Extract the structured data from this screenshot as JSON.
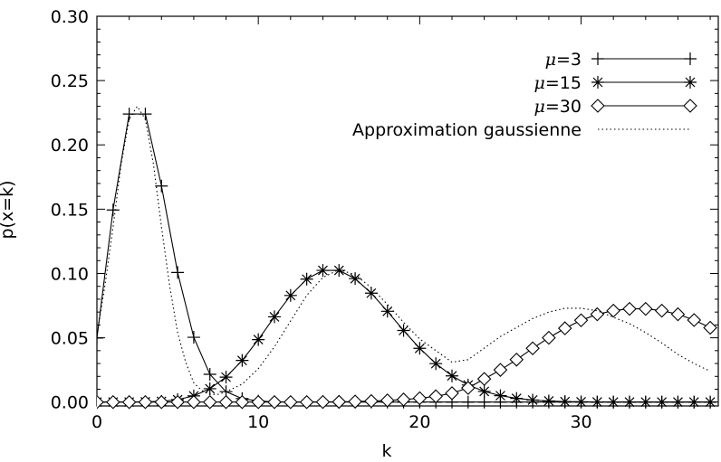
{
  "chart_data": {
    "type": "line",
    "xlabel": "k",
    "ylabel": "p(x=k)",
    "xlim": [
      0,
      38.5
    ],
    "ylim": [
      -0.003,
      0.3
    ],
    "x_ticks": [
      "0",
      "10",
      "20",
      "30"
    ],
    "y_ticks": [
      "0.00",
      "0.05",
      "0.10",
      "0.15",
      "0.20",
      "0.25",
      "0.30"
    ],
    "grid": false,
    "legend_position": "top-right",
    "series": [
      {
        "name": "μ=3",
        "legend_mu": "μ",
        "legend_rest": "=3",
        "marker": "plus",
        "x": [
          0,
          1,
          2,
          3,
          4,
          5,
          6,
          7,
          8,
          9,
          10,
          11,
          12,
          13,
          14,
          15,
          16,
          17,
          18,
          19,
          20,
          21,
          22,
          23,
          24,
          25,
          26,
          27,
          28,
          29,
          30,
          31,
          32,
          33,
          34,
          35,
          36,
          37,
          38
        ],
        "values": [
          0.0498,
          0.1494,
          0.224,
          0.224,
          0.168,
          0.1008,
          0.0504,
          0.0216,
          0.0081,
          0.0027,
          0.0008,
          0.0002,
          0.0001,
          0,
          0,
          0,
          0,
          0,
          0,
          0,
          0,
          0,
          0,
          0,
          0,
          0,
          0,
          0,
          0,
          0,
          0,
          0,
          0,
          0,
          0,
          0,
          0,
          0,
          0
        ]
      },
      {
        "name": "μ=15",
        "legend_mu": "μ",
        "legend_rest": "=15",
        "marker": "asterisk",
        "x": [
          0,
          1,
          2,
          3,
          4,
          5,
          6,
          7,
          8,
          9,
          10,
          11,
          12,
          13,
          14,
          15,
          16,
          17,
          18,
          19,
          20,
          21,
          22,
          23,
          24,
          25,
          26,
          27,
          28,
          29,
          30,
          31,
          32,
          33,
          34,
          35,
          36,
          37,
          38
        ],
        "values": [
          0,
          0,
          0,
          0.0002,
          0.0006,
          0.0019,
          0.0048,
          0.0104,
          0.0194,
          0.0324,
          0.0486,
          0.0663,
          0.0829,
          0.0956,
          0.1024,
          0.1024,
          0.096,
          0.0847,
          0.0706,
          0.0557,
          0.0418,
          0.0299,
          0.0204,
          0.0133,
          0.0083,
          0.005,
          0.0029,
          0.0016,
          0.0009,
          0.0004,
          0.0002,
          0.0001,
          0,
          0,
          0,
          0,
          0,
          0,
          0
        ]
      },
      {
        "name": "μ=30",
        "legend_mu": "μ",
        "legend_rest": "=30",
        "marker": "diamond",
        "x": [
          0,
          1,
          2,
          3,
          4,
          5,
          6,
          7,
          8,
          9,
          10,
          11,
          12,
          13,
          14,
          15,
          16,
          17,
          18,
          19,
          20,
          21,
          22,
          23,
          24,
          25,
          26,
          27,
          28,
          29,
          30,
          31,
          32,
          33,
          34,
          35,
          36,
          37,
          38
        ],
        "values": [
          0,
          0,
          0,
          0,
          0,
          0,
          0,
          0,
          0,
          0,
          0,
          0,
          0,
          0,
          0.0001,
          0.0002,
          0.0004,
          0.0008,
          0.0013,
          0.002,
          0.003,
          0.0045,
          0.0069,
          0.011,
          0.018,
          0.025,
          0.033,
          0.0418,
          0.05,
          0.0574,
          0.0636,
          0.0683,
          0.0711,
          0.0725,
          0.0725,
          0.0711,
          0.0683,
          0.0638,
          0.0578
        ]
      },
      {
        "name": "Approximation gaussienne",
        "marker": "none",
        "style": "dotted",
        "legend_label": "Approximation gaussienne",
        "x": [
          0,
          0.5,
          1,
          1.5,
          2,
          2.5,
          3,
          3.5,
          4,
          4.5,
          5,
          5.5,
          6,
          6.5,
          7,
          7.5,
          8,
          9,
          10,
          11,
          12,
          13,
          14,
          15,
          16,
          17,
          18,
          19,
          20,
          21,
          22,
          23,
          24,
          25,
          26,
          27,
          28,
          29,
          30,
          31,
          32,
          33,
          34,
          35,
          36,
          37,
          38
        ],
        "values": [
          0.052,
          0.091,
          0.136,
          0.185,
          0.22,
          0.23,
          0.22,
          0.185,
          0.136,
          0.091,
          0.054,
          0.031,
          0.015,
          0.009,
          0.006,
          0.006,
          0.008,
          0.014,
          0.026,
          0.043,
          0.063,
          0.083,
          0.097,
          0.103,
          0.099,
          0.089,
          0.076,
          0.062,
          0.049,
          0.04,
          0.031,
          0.033,
          0.042,
          0.051,
          0.058,
          0.065,
          0.07,
          0.073,
          0.073,
          0.071,
          0.066,
          0.061,
          0.054,
          0.046,
          0.037,
          0.03,
          0.024
        ]
      }
    ]
  }
}
